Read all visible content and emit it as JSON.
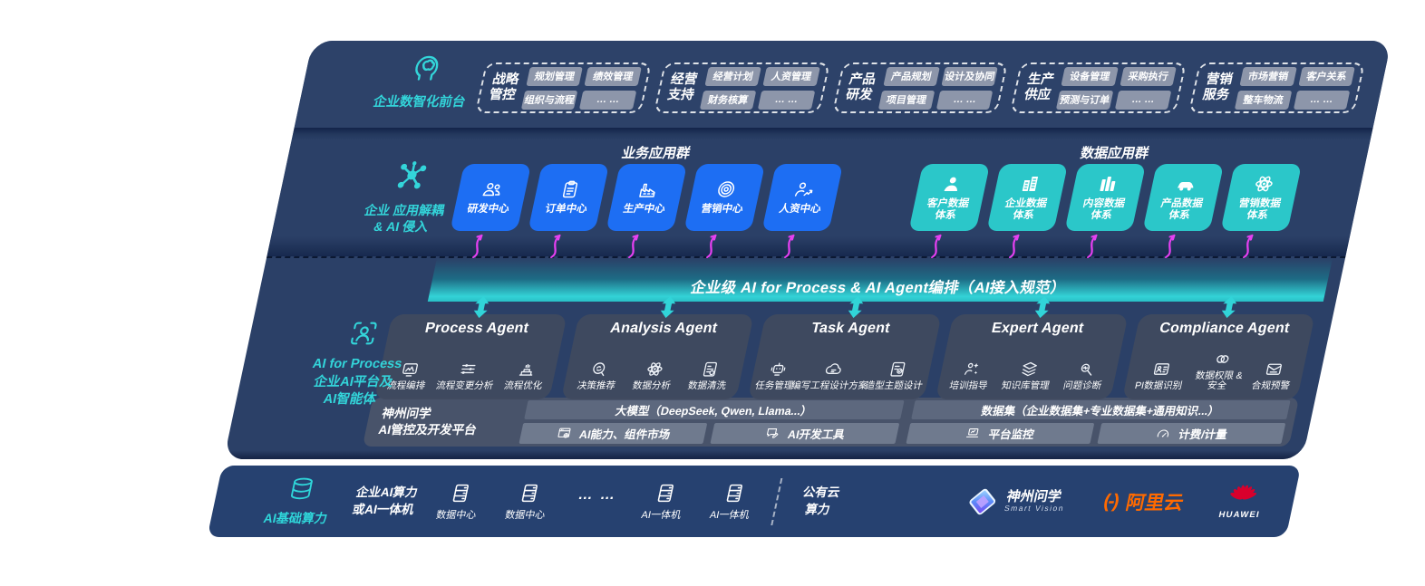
{
  "front_office": {
    "label": "企业数智化前台",
    "groups": [
      {
        "title": "战略\n管控",
        "items": [
          "规划管理",
          "绩效管理",
          "组织与流程",
          "… …"
        ]
      },
      {
        "title": "经营\n支持",
        "items": [
          "经营计划",
          "人资管理",
          "财务核算",
          "… …"
        ]
      },
      {
        "title": "产品\n研发",
        "items": [
          "产品规划",
          "设计及协同",
          "项目管理",
          "… …"
        ]
      },
      {
        "title": "生产\n供应",
        "items": [
          "设备管理",
          "采购执行",
          "预测与订单",
          "… …"
        ]
      },
      {
        "title": "营销\n服务",
        "items": [
          "市场营销",
          "客户关系",
          "整车物流",
          "… …"
        ]
      }
    ]
  },
  "app_layer": {
    "label_lines": [
      "企业 应用解耦",
      "& AI 侵入"
    ],
    "business_group": {
      "title": "业务应用群",
      "tiles": [
        {
          "label": "研发中心",
          "icon": "people"
        },
        {
          "label": "订单中心",
          "icon": "clipboard"
        },
        {
          "label": "生产中心",
          "icon": "factory"
        },
        {
          "label": "营销中心",
          "icon": "target"
        },
        {
          "label": "人资中心",
          "icon": "team"
        }
      ]
    },
    "data_group": {
      "title": "数据应用群",
      "tiles": [
        {
          "label": "客户数据\n体系",
          "icon": "person"
        },
        {
          "label": "企业数据\n体系",
          "icon": "building"
        },
        {
          "label": "内容数据\n体系",
          "icon": "columns"
        },
        {
          "label": "产品数据\n体系",
          "icon": "car"
        },
        {
          "label": "营销数据\n体系",
          "icon": "atom"
        }
      ]
    }
  },
  "orchestration": {
    "label": "企业级 AI for Process & AI Agent编排（AI接入规范）"
  },
  "ai_layer": {
    "label_lines": [
      "AI for Process",
      "企业AI平台及",
      "AI智能体"
    ],
    "agents": [
      {
        "title": "Process Agent",
        "items": [
          {
            "label": "流程编排",
            "icon": "flow"
          },
          {
            "label": "流程变更分析",
            "icon": "sliders"
          },
          {
            "label": "流程优化",
            "icon": "optimize"
          }
        ]
      },
      {
        "title": "Analysis Agent",
        "items": [
          {
            "label": "决策推荐",
            "icon": "think"
          },
          {
            "label": "数据分析",
            "icon": "atom"
          },
          {
            "label": "数据清洗",
            "icon": "doc-data"
          }
        ]
      },
      {
        "title": "Task Agent",
        "items": [
          {
            "label": "任务管理",
            "icon": "robot"
          },
          {
            "label": "编写工程设计方案",
            "icon": "cloud-edit"
          },
          {
            "label": "造型主题设计",
            "icon": "check-doc"
          }
        ]
      },
      {
        "title": "Expert Agent",
        "items": [
          {
            "label": "培训指导",
            "icon": "teach"
          },
          {
            "label": "知识库管理",
            "icon": "layers"
          },
          {
            "label": "问题诊断",
            "icon": "diagnose"
          }
        ]
      },
      {
        "title": "Compliance Agent",
        "items": [
          {
            "label": "PI数据识别",
            "icon": "id-card"
          },
          {
            "label": "数据权限 &\n安全",
            "icon": "link"
          },
          {
            "label": "合规预警",
            "icon": "alert-mail"
          }
        ]
      }
    ],
    "platform": {
      "label_lines": [
        "神州问学",
        "AI管控及开发平台"
      ],
      "left_bar": "大模型（DeepSeek, Qwen, Llama...）",
      "right_bar": "数据集（企业数据集+专业数据集+通用知识...）",
      "left_cells": [
        {
          "label": "AI能力、组件市场",
          "icon": "market"
        },
        {
          "label": "AI开发工具",
          "icon": "tools"
        }
      ],
      "right_cells": [
        {
          "label": "平台监控",
          "icon": "monitor"
        },
        {
          "label": "计费/计量",
          "icon": "gauge"
        }
      ]
    }
  },
  "infra": {
    "label": "AI基础算力",
    "compute_lines": [
      "企业AI算力",
      "或AI一体机"
    ],
    "nodes": [
      {
        "label": "数据中心",
        "icon": "server"
      },
      {
        "label": "数据中心",
        "icon": "server"
      },
      {
        "label": "… …",
        "icon": "dots"
      },
      {
        "label": "AI一体机",
        "icon": "server"
      },
      {
        "label": "AI一体机",
        "icon": "server"
      }
    ],
    "cloud_lines": [
      "公有云",
      "算力"
    ],
    "vendors": {
      "shenzhou": {
        "name": "神州问学",
        "sub": "Smart Vision"
      },
      "alibaba": {
        "mark": "(-)",
        "name": "阿里云"
      },
      "huawei": {
        "name": "HUAWEI"
      }
    }
  },
  "colors": {
    "accent_teal": "#33d5da",
    "tile_blue": "#1d6ef3",
    "tile_teal": "#2bc7c9",
    "arrow_pink": "#e640f2",
    "navy_bg": "#2b4067",
    "alibaba_orange": "#ff6a00",
    "huawei_red": "#d8002c"
  }
}
